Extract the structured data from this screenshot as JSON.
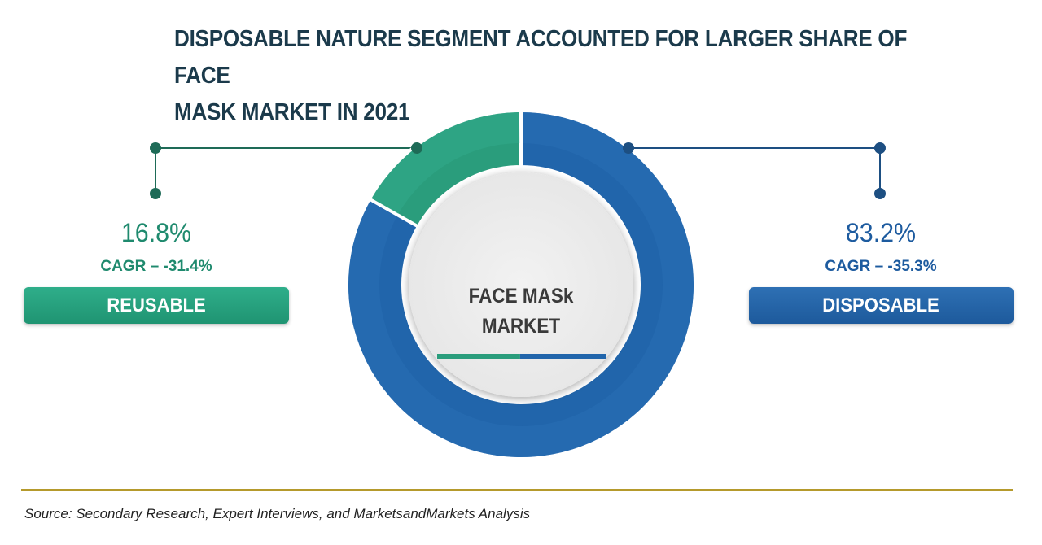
{
  "chart_data": {
    "type": "pie",
    "variant": "donut",
    "title": "DISPOSABLE NATURE SEGMENT ACCOUNTED FOR LARGER SHARE OF FACE MASK MARKET IN 2021",
    "title_lines": [
      "DISPOSABLE NATURE SEGMENT ACCOUNTED FOR LARGER SHARE OF FACE",
      "MASK MARKET IN 2021"
    ],
    "center_label_lines": [
      "FACE MASk",
      "MARKET"
    ],
    "segments": [
      {
        "name": "Reusable",
        "pill_label": "REUSABLE",
        "value": 16.8,
        "value_label": "16.8%",
        "cagr_label": "CAGR – -31.4%",
        "color": "#2a9d7c",
        "light_color": "#32a98a"
      },
      {
        "name": "Disposable",
        "pill_label": "DISPOSABLE",
        "value": 83.2,
        "value_label": "83.2%",
        "cagr_label": "CAGR – -35.3%",
        "color": "#2165ab",
        "light_color": "#2a6fb5"
      }
    ]
  },
  "colors": {
    "title": "#1b3a4b",
    "reusable_accent": "#1f8a6e",
    "disposable_accent": "#1d5b9f",
    "connector_reusable": "#1e6b57",
    "connector_disposable": "#1d4f82",
    "rule": "#b59a2c"
  },
  "source": "Source: Secondary Research, Expert Interviews, and MarketsandMarkets Analysis"
}
